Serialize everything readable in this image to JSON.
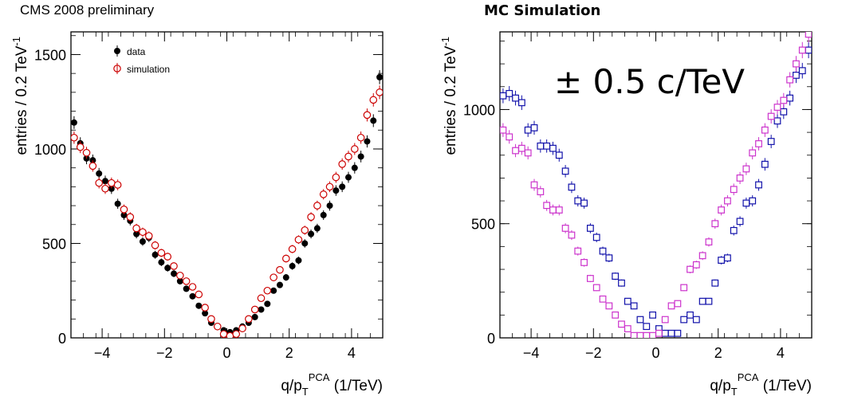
{
  "left_title": "CMS 2008 preliminary",
  "right_title": "MC Simulation",
  "chart_data": [
    {
      "type": "scatter",
      "title": "CMS 2008 preliminary",
      "xlabel": "q/p",
      "xlabel_sub": "T",
      "xlabel_sup": "PCA",
      "xlabel_unit": "(1/TeV)",
      "ylabel": "entries / 0.2 TeV",
      "ylabel_sup": "-1",
      "xlim": [
        -5,
        5
      ],
      "ylim": [
        0,
        1620
      ],
      "xticks": [
        -4,
        -2,
        0,
        2,
        4
      ],
      "yticks": [
        0,
        500,
        1000,
        1500
      ],
      "legend": "top-left",
      "x": [
        -4.9,
        -4.7,
        -4.5,
        -4.3,
        -4.1,
        -3.9,
        -3.7,
        -3.5,
        -3.3,
        -3.1,
        -2.9,
        -2.7,
        -2.5,
        -2.3,
        -2.1,
        -1.9,
        -1.7,
        -1.5,
        -1.3,
        -1.1,
        -0.9,
        -0.7,
        -0.5,
        -0.3,
        -0.1,
        0.1,
        0.3,
        0.5,
        0.7,
        0.9,
        1.1,
        1.3,
        1.5,
        1.7,
        1.9,
        2.1,
        2.3,
        2.5,
        2.7,
        2.9,
        3.1,
        3.3,
        3.5,
        3.7,
        3.9,
        4.1,
        4.3,
        4.5,
        4.7,
        4.9
      ],
      "series": [
        {
          "name": "data",
          "color": "#000000",
          "marker": "filled-circle",
          "values": [
            1140,
            1030,
            950,
            940,
            870,
            830,
            790,
            710,
            650,
            620,
            550,
            510,
            530,
            440,
            400,
            370,
            340,
            300,
            260,
            220,
            170,
            130,
            80,
            60,
            40,
            30,
            40,
            60,
            80,
            110,
            150,
            180,
            250,
            280,
            320,
            380,
            410,
            500,
            550,
            580,
            650,
            700,
            780,
            800,
            850,
            900,
            960,
            1040,
            1150,
            1380
          ]
        },
        {
          "name": "simulation",
          "color": "#cc0000",
          "marker": "open-circle",
          "values": [
            1060,
            1010,
            980,
            910,
            820,
            790,
            820,
            810,
            680,
            640,
            580,
            560,
            540,
            490,
            450,
            430,
            380,
            330,
            300,
            270,
            230,
            160,
            100,
            60,
            20,
            10,
            20,
            50,
            100,
            150,
            210,
            250,
            320,
            360,
            420,
            470,
            520,
            570,
            640,
            700,
            760,
            800,
            850,
            920,
            960,
            1000,
            1060,
            1180,
            1260,
            1300
          ]
        }
      ]
    },
    {
      "type": "scatter",
      "title": "MC Simulation",
      "annotation": "± 0.5 c/TeV",
      "xlabel": "q/p",
      "xlabel_sub": "T",
      "xlabel_sup": "PCA",
      "xlabel_unit": "(1/TeV)",
      "ylabel": "entries / 0.2 TeV",
      "ylabel_sup": "-1",
      "xlim": [
        -5,
        5
      ],
      "ylim": [
        0,
        1340
      ],
      "xticks": [
        -4,
        -2,
        0,
        2,
        4
      ],
      "yticks": [
        0,
        500,
        1000
      ],
      "x": [
        -4.9,
        -4.7,
        -4.5,
        -4.3,
        -4.1,
        -3.9,
        -3.7,
        -3.5,
        -3.3,
        -3.1,
        -2.9,
        -2.7,
        -2.5,
        -2.3,
        -2.1,
        -1.9,
        -1.7,
        -1.5,
        -1.3,
        -1.1,
        -0.9,
        -0.7,
        -0.5,
        -0.3,
        -0.1,
        0.1,
        0.3,
        0.5,
        0.7,
        0.9,
        1.1,
        1.3,
        1.5,
        1.7,
        1.9,
        2.1,
        2.3,
        2.5,
        2.7,
        2.9,
        3.1,
        3.3,
        3.5,
        3.7,
        3.9,
        4.1,
        4.3,
        4.5,
        4.7,
        4.9
      ],
      "series": [
        {
          "color": "#1111aa",
          "marker": "open-square",
          "values": [
            1060,
            1070,
            1050,
            1030,
            910,
            920,
            840,
            840,
            830,
            800,
            730,
            660,
            600,
            590,
            480,
            440,
            380,
            350,
            270,
            240,
            160,
            140,
            80,
            50,
            100,
            40,
            20,
            20,
            20,
            80,
            100,
            80,
            160,
            160,
            240,
            340,
            350,
            470,
            510,
            590,
            600,
            670,
            760,
            860,
            950,
            990,
            1050,
            1150,
            1170,
            1260
          ]
        },
        {
          "color": "#cc33cc",
          "marker": "open-square",
          "values": [
            910,
            880,
            820,
            830,
            810,
            670,
            640,
            580,
            560,
            560,
            480,
            450,
            380,
            330,
            260,
            220,
            170,
            140,
            100,
            60,
            40,
            10,
            10,
            10,
            10,
            20,
            80,
            140,
            150,
            220,
            300,
            320,
            360,
            420,
            500,
            560,
            600,
            650,
            700,
            740,
            810,
            850,
            910,
            970,
            1010,
            1040,
            1130,
            1200,
            1260,
            1330
          ]
        }
      ]
    }
  ]
}
